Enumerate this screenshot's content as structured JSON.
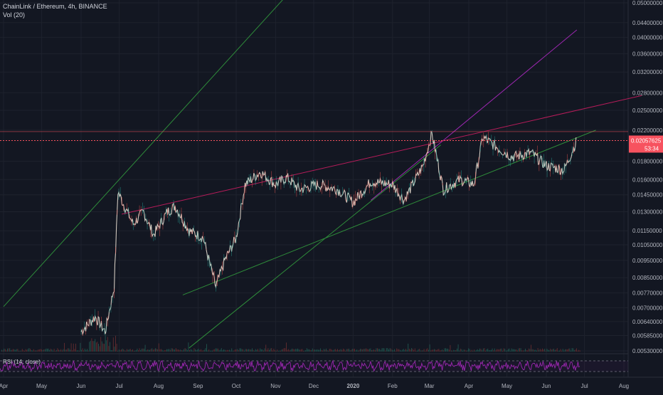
{
  "header": {
    "symbol_line": "ChainLink / Ethereum, 4h, BINANCE",
    "volume_line": "Vol (20)"
  },
  "rsi": {
    "label": "RSI (14, close)"
  },
  "colors": {
    "background": "#131722",
    "grid": "#1e222d",
    "up": "#26a69a",
    "down": "#ef5350",
    "candle_fill": "#e6dccf",
    "green_line": "#2e8b3a",
    "purple_line": "#9c27b0",
    "red_line": "#b71c5a",
    "price_line": "#f7525f",
    "rsi_line": "#9c27b0"
  },
  "chart_data": {
    "type": "line",
    "title": "ChainLink / Ethereum, 4h, BINANCE",
    "y_axis_ticks": [
      "0.05000000",
      "0.04400000",
      "0.04000000",
      "0.03600000",
      "0.03200000",
      "0.02800000",
      "0.02500000",
      "0.02200000",
      "0.01800000",
      "0.01600000",
      "0.01450000",
      "0.01300000",
      "0.01150000",
      "0.01050000",
      "0.00950000",
      "0.00850000",
      "0.00770000",
      "0.00700000",
      "0.00640000",
      "0.00585000",
      "0.00530000"
    ],
    "x_axis_ticks": [
      "Apr",
      "May",
      "Jun",
      "Jul",
      "Aug",
      "Sep",
      "Oct",
      "Nov",
      "Dec",
      "2020",
      "Feb",
      "Mar",
      "Apr",
      "May",
      "Jun",
      "Jul",
      "Aug"
    ],
    "last_price": "0.02057625",
    "countdown": "53:34",
    "scale": "log",
    "series": [
      {
        "values_approx": [
          [
            "2019-06-01",
            0.006
          ],
          [
            "2019-06-12",
            0.0066
          ],
          [
            "2019-06-20",
            0.006
          ],
          [
            "2019-06-27",
            0.008
          ],
          [
            "2019-06-30",
            0.0148
          ],
          [
            "2019-07-05",
            0.0135
          ],
          [
            "2019-07-12",
            0.012
          ],
          [
            "2019-07-20",
            0.013
          ],
          [
            "2019-07-28",
            0.0112
          ],
          [
            "2019-08-08",
            0.013
          ],
          [
            "2019-08-14",
            0.0135
          ],
          [
            "2019-08-25",
            0.0115
          ],
          [
            "2019-09-05",
            0.011
          ],
          [
            "2019-09-15",
            0.008
          ],
          [
            "2019-09-22",
            0.0095
          ],
          [
            "2019-10-01",
            0.011
          ],
          [
            "2019-10-08",
            0.0155
          ],
          [
            "2019-10-20",
            0.0168
          ],
          [
            "2019-11-01",
            0.0155
          ],
          [
            "2019-11-10",
            0.0162
          ],
          [
            "2019-11-20",
            0.015
          ],
          [
            "2019-12-05",
            0.0155
          ],
          [
            "2019-12-20",
            0.015
          ],
          [
            "2020-01-01",
            0.0138
          ],
          [
            "2020-01-15",
            0.0158
          ],
          [
            "2020-02-01",
            0.0155
          ],
          [
            "2020-02-10",
            0.014
          ],
          [
            "2020-02-25",
            0.0175
          ],
          [
            "2020-03-03",
            0.0215
          ],
          [
            "2020-03-12",
            0.015
          ],
          [
            "2020-03-25",
            0.016
          ],
          [
            "2020-04-05",
            0.0155
          ],
          [
            "2020-04-12",
            0.021
          ],
          [
            "2020-04-25",
            0.0195
          ],
          [
            "2020-05-05",
            0.0185
          ],
          [
            "2020-05-20",
            0.019
          ],
          [
            "2020-06-01",
            0.0175
          ],
          [
            "2020-06-15",
            0.017
          ],
          [
            "2020-06-25",
            0.0206
          ]
        ]
      }
    ],
    "trendlines": [
      {
        "color": "green",
        "from": [
          "2019-04-01",
          0.00705
        ],
        "to": [
          "2019-11-15",
          0.055
        ]
      },
      {
        "color": "green",
        "from": [
          "2019-08-20",
          0.0076
        ],
        "to": [
          "2020-07-10",
          0.022
        ]
      },
      {
        "color": "green",
        "from": [
          "2019-08-25",
          0.0054
        ],
        "to": [
          "2020-03-10",
          0.02
        ]
      },
      {
        "color": "purple",
        "from": [
          "2020-01-15",
          0.014
        ],
        "to": [
          "2020-06-25",
          0.042
        ]
      },
      {
        "color": "red",
        "from": [
          "2019-07-03",
          0.0128
        ],
        "to": [
          "2020-08-15",
          0.0275
        ]
      }
    ],
    "horizontal_lines": [
      {
        "color": "red",
        "value": 0.02057625
      },
      {
        "color": "red",
        "value": 0.0218
      }
    ]
  }
}
